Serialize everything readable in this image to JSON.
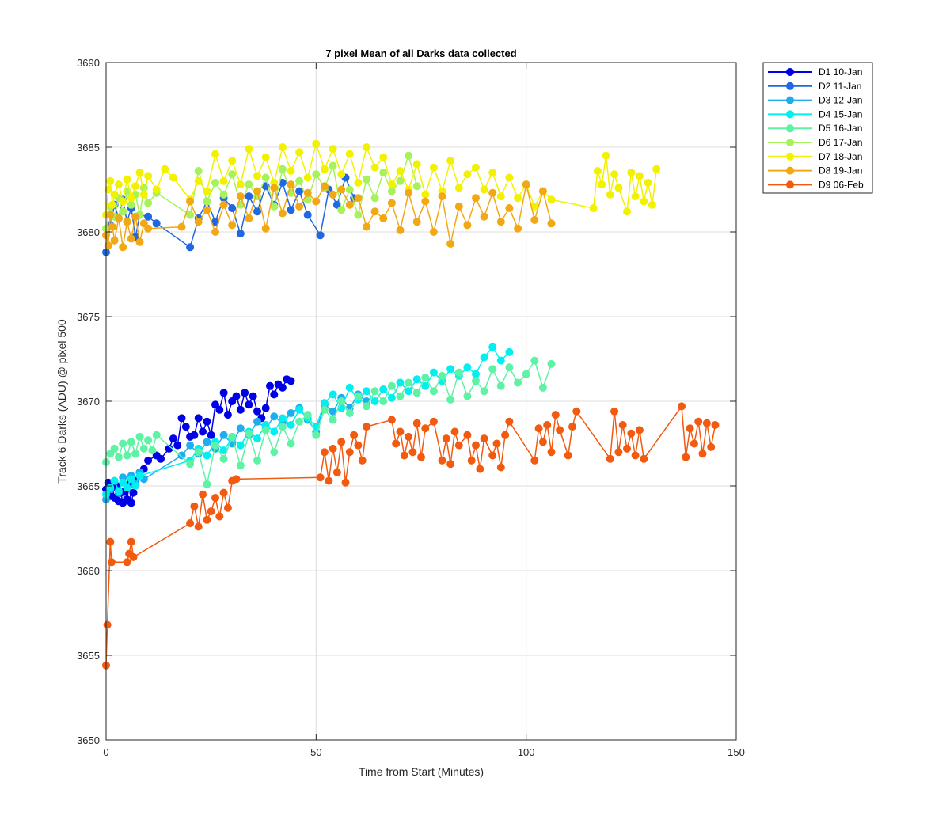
{
  "chart_data": {
    "type": "line",
    "title": "7 pixel Mean of all Darks data collected",
    "xlabel": "Time from Start (Minutes)",
    "ylabel": "Track 6 Darks (ADU) @ pixel 500",
    "xlim": [
      0,
      150
    ],
    "ylim": [
      3650,
      3690
    ],
    "xticks": [
      0,
      50,
      100,
      150
    ],
    "yticks": [
      3650,
      3655,
      3660,
      3665,
      3670,
      3675,
      3680,
      3685,
      3690
    ],
    "grid": true,
    "legend_position": "outside-top-right",
    "marker": "circle",
    "series": [
      {
        "name": "D1 10-Jan",
        "color": "#0000e6",
        "x": [
          0,
          0.5,
          1,
          1.5,
          2,
          2.5,
          3,
          3.5,
          4,
          4.5,
          5,
          5.5,
          6,
          6.5,
          7,
          8,
          9,
          10,
          12,
          13,
          15,
          16,
          17,
          18,
          19,
          20,
          21,
          22,
          23,
          24,
          25,
          26,
          27,
          28,
          29,
          30,
          31,
          32,
          33,
          34,
          35,
          36,
          37,
          38,
          39,
          40,
          41,
          42,
          43,
          44
        ],
        "y": [
          3664.8,
          3665.2,
          3664.4,
          3664.9,
          3664.3,
          3665.0,
          3664.1,
          3664.6,
          3664.0,
          3664.7,
          3664.2,
          3665.1,
          3664.0,
          3664.6,
          3665.3,
          3665.8,
          3666.0,
          3666.5,
          3666.8,
          3666.6,
          3667.2,
          3667.8,
          3667.4,
          3669.0,
          3668.5,
          3667.9,
          3668.0,
          3669.0,
          3668.2,
          3668.8,
          3668.0,
          3669.8,
          3669.5,
          3670.5,
          3669.2,
          3670.0,
          3670.3,
          3669.5,
          3670.5,
          3669.8,
          3670.3,
          3669.4,
          3669.0,
          3669.6,
          3670.9,
          3670.4,
          3671.0,
          3670.8,
          3671.3,
          3671.2
        ]
      },
      {
        "name": "D2 11-Jan",
        "color": "#1f67e3",
        "x": [
          0,
          1,
          2,
          3,
          4,
          5,
          6,
          7,
          8,
          10,
          12,
          20,
          22,
          24,
          26,
          28,
          30,
          32,
          34,
          36,
          38,
          40,
          42,
          44,
          46,
          48,
          51,
          53,
          55,
          57,
          59
        ],
        "y": [
          3678.8,
          3680.4,
          3681.6,
          3680.8,
          3681.9,
          3680.6,
          3681.4,
          3679.7,
          3681.0,
          3680.9,
          3680.5,
          3679.1,
          3680.8,
          3681.8,
          3680.6,
          3682.0,
          3681.4,
          3679.9,
          3682.1,
          3681.2,
          3682.7,
          3681.6,
          3682.9,
          3681.3,
          3682.4,
          3681.0,
          3679.8,
          3682.5,
          3681.6,
          3683.2,
          3682.0
        ]
      },
      {
        "name": "D3 12-Jan",
        "color": "#1eaef0",
        "x": [
          0,
          1,
          2,
          3,
          4,
          5,
          6,
          7,
          8,
          9,
          18,
          20,
          22,
          24,
          26,
          28,
          30,
          32,
          34,
          36,
          38,
          40,
          42,
          44,
          46,
          48,
          50,
          52,
          54,
          56,
          58,
          60,
          62
        ],
        "y": [
          3664.2,
          3664.8,
          3665.3,
          3664.6,
          3665.5,
          3664.9,
          3665.6,
          3665.1,
          3665.8,
          3665.4,
          3666.8,
          3667.4,
          3666.9,
          3667.6,
          3667.2,
          3668.0,
          3667.5,
          3668.4,
          3668.0,
          3668.8,
          3668.4,
          3669.1,
          3668.7,
          3669.3,
          3669.6,
          3668.9,
          3668.2,
          3669.8,
          3669.4,
          3670.2,
          3669.6,
          3670.4,
          3670.0
        ]
      },
      {
        "name": "D4 15-Jan",
        "color": "#00f0f0",
        "x": [
          0,
          1,
          2,
          3,
          4,
          5,
          6,
          7,
          8,
          20,
          22,
          24,
          26,
          28,
          30,
          32,
          34,
          36,
          38,
          40,
          42,
          44,
          46,
          48,
          50,
          52,
          54,
          56,
          58,
          60,
          62,
          64,
          66,
          68,
          70,
          72,
          74,
          76,
          78,
          80,
          82,
          84,
          86,
          88,
          90,
          92,
          94,
          96
        ],
        "y": [
          3664.5,
          3664.9,
          3665.3,
          3664.7,
          3665.2,
          3664.9,
          3665.4,
          3665.0,
          3665.6,
          3666.5,
          3667.2,
          3666.8,
          3667.6,
          3667.1,
          3667.8,
          3667.4,
          3668.2,
          3667.8,
          3668.6,
          3668.2,
          3669.0,
          3668.6,
          3669.5,
          3669.0,
          3668.5,
          3669.9,
          3670.4,
          3669.6,
          3670.8,
          3670.1,
          3670.6,
          3670.0,
          3670.7,
          3670.2,
          3671.1,
          3670.6,
          3671.3,
          3670.9,
          3671.7,
          3671.2,
          3671.9,
          3671.5,
          3672.0,
          3671.6,
          3672.6,
          3673.2,
          3672.4,
          3672.9
        ]
      },
      {
        "name": "D5 16-Jan",
        "color": "#5ef2a5",
        "x": [
          0,
          1,
          2,
          3,
          4,
          5,
          6,
          7,
          8,
          9,
          10,
          11,
          12,
          20,
          22,
          24,
          26,
          28,
          30,
          32,
          34,
          36,
          38,
          40,
          42,
          44,
          46,
          48,
          50,
          52,
          54,
          56,
          58,
          60,
          62,
          64,
          66,
          68,
          70,
          72,
          74,
          76,
          78,
          80,
          82,
          84,
          86,
          88,
          90,
          92,
          94,
          96,
          98,
          100,
          102,
          104,
          106
        ],
        "y": [
          3666.4,
          3666.9,
          3667.2,
          3666.7,
          3667.5,
          3666.8,
          3667.6,
          3666.9,
          3667.9,
          3667.2,
          3667.7,
          3667.1,
          3668.0,
          3666.3,
          3667.0,
          3665.1,
          3667.4,
          3666.6,
          3667.9,
          3666.2,
          3668.1,
          3666.5,
          3668.3,
          3667.0,
          3668.5,
          3667.5,
          3668.8,
          3669.2,
          3668.0,
          3669.5,
          3668.9,
          3670.0,
          3669.3,
          3670.3,
          3669.7,
          3670.6,
          3670.0,
          3670.9,
          3670.3,
          3671.1,
          3670.5,
          3671.4,
          3670.6,
          3671.5,
          3670.1,
          3671.7,
          3670.3,
          3671.2,
          3670.6,
          3671.9,
          3670.9,
          3672.0,
          3671.1,
          3671.6,
          3672.4,
          3670.8,
          3672.2
        ]
      },
      {
        "name": "D6 17-Jan",
        "color": "#a6f25a",
        "x": [
          0,
          1,
          2,
          3,
          4,
          5,
          6,
          7,
          8,
          9,
          10,
          12,
          20,
          22,
          24,
          26,
          28,
          30,
          32,
          34,
          36,
          38,
          40,
          42,
          44,
          46,
          48,
          50,
          52,
          54,
          56,
          58,
          60,
          62,
          64,
          66,
          68,
          70,
          72,
          74
        ],
        "y": [
          3680.2,
          3681.5,
          3680.9,
          3682.0,
          3681.2,
          3682.4,
          3681.6,
          3682.2,
          3681.0,
          3682.6,
          3681.7,
          3682.3,
          3681.0,
          3683.6,
          3681.8,
          3682.9,
          3682.2,
          3683.4,
          3681.6,
          3682.8,
          3682.1,
          3683.2,
          3681.5,
          3683.7,
          3682.3,
          3683.0,
          3681.9,
          3683.4,
          3682.6,
          3683.9,
          3681.3,
          3682.5,
          3681.0,
          3683.1,
          3682.0,
          3683.5,
          3682.4,
          3683.0,
          3684.5,
          3682.7
        ]
      },
      {
        "name": "D7 18-Jan",
        "color": "#f2f200",
        "x": [
          0,
          0.5,
          1,
          1.5,
          2,
          3,
          4,
          5,
          6,
          7,
          8,
          9,
          10,
          12,
          14,
          16,
          20,
          22,
          24,
          26,
          28,
          30,
          32,
          34,
          36,
          38,
          40,
          42,
          44,
          46,
          48,
          50,
          52,
          54,
          56,
          58,
          60,
          62,
          64,
          66,
          68,
          70,
          72,
          74,
          76,
          78,
          80,
          82,
          84,
          86,
          88,
          90,
          92,
          94,
          96,
          98,
          100,
          102,
          104,
          106,
          116,
          117,
          118,
          119,
          120,
          121,
          122,
          124,
          125,
          126,
          127,
          128,
          129,
          130,
          131
        ],
        "y": [
          3681.0,
          3682.5,
          3683.0,
          3681.6,
          3682.2,
          3682.8,
          3681.8,
          3683.1,
          3682.0,
          3682.7,
          3683.5,
          3682.2,
          3683.3,
          3682.5,
          3683.7,
          3683.2,
          3681.9,
          3683.0,
          3682.4,
          3684.6,
          3683.0,
          3684.2,
          3682.8,
          3684.9,
          3683.3,
          3684.4,
          3682.9,
          3685.0,
          3683.6,
          3684.7,
          3683.2,
          3685.2,
          3683.7,
          3684.9,
          3683.4,
          3684.6,
          3682.9,
          3685.0,
          3683.8,
          3684.4,
          3682.8,
          3683.6,
          3682.5,
          3684.0,
          3682.2,
          3683.8,
          3682.4,
          3684.2,
          3682.6,
          3683.4,
          3683.8,
          3682.5,
          3683.5,
          3682.1,
          3683.2,
          3682.0,
          3682.8,
          3681.5,
          3682.4,
          3681.9,
          3681.4,
          3683.6,
          3682.8,
          3684.5,
          3682.2,
          3683.4,
          3682.6,
          3681.2,
          3683.5,
          3682.1,
          3683.3,
          3681.8,
          3682.9,
          3681.6,
          3683.7
        ]
      },
      {
        "name": "D8 19-Jan",
        "color": "#f2a814",
        "x": [
          0,
          0.5,
          1,
          1.5,
          2,
          3,
          4,
          5,
          6,
          7,
          8,
          9,
          10,
          18,
          20,
          22,
          24,
          26,
          28,
          30,
          32,
          34,
          36,
          38,
          40,
          42,
          44,
          46,
          48,
          50,
          52,
          54,
          56,
          58,
          60,
          62,
          64,
          66,
          68,
          70,
          72,
          74,
          76,
          78,
          80,
          82,
          84,
          86,
          88,
          90,
          92,
          94,
          96,
          98,
          100,
          102,
          104,
          106
        ],
        "y": [
          3679.8,
          3679.2,
          3681.0,
          3680.3,
          3679.5,
          3680.8,
          3679.1,
          3680.6,
          3679.6,
          3680.9,
          3679.4,
          3680.5,
          3680.2,
          3680.3,
          3681.8,
          3680.6,
          3681.3,
          3680.0,
          3681.6,
          3680.4,
          3682.1,
          3680.8,
          3682.4,
          3680.2,
          3682.6,
          3681.1,
          3682.8,
          3681.5,
          3682.3,
          3681.8,
          3682.7,
          3682.2,
          3682.5,
          3681.6,
          3682.0,
          3680.3,
          3681.2,
          3680.8,
          3681.7,
          3680.1,
          3682.3,
          3680.6,
          3681.8,
          3680.0,
          3682.1,
          3679.3,
          3681.5,
          3680.4,
          3682.0,
          3680.9,
          3682.3,
          3680.6,
          3681.4,
          3680.2,
          3682.8,
          3680.7,
          3682.4,
          3680.5
        ]
      },
      {
        "name": "D9 06-Feb",
        "color": "#f25a0f",
        "x": [
          0,
          0.3,
          1,
          1.3,
          5,
          5.5,
          6,
          6.5,
          20,
          21,
          22,
          23,
          24,
          25,
          26,
          27,
          28,
          29,
          30,
          31,
          51,
          52,
          53,
          54,
          55,
          56,
          57,
          58,
          59,
          60,
          61,
          62,
          68,
          69,
          70,
          71,
          72,
          73,
          74,
          75,
          76,
          78,
          80,
          81,
          82,
          83,
          84,
          86,
          87,
          88,
          89,
          90,
          92,
          93,
          94,
          95,
          96,
          102,
          103,
          104,
          105,
          106,
          107,
          108,
          110,
          111,
          112,
          120,
          121,
          122,
          123,
          124,
          125,
          126,
          127,
          128,
          137,
          138,
          139,
          140,
          141,
          142,
          143,
          144,
          145
        ],
        "y": [
          3654.4,
          3656.8,
          3661.7,
          3660.5,
          3660.5,
          3661.0,
          3661.7,
          3660.8,
          3662.8,
          3663.8,
          3662.6,
          3664.5,
          3663.0,
          3663.5,
          3664.3,
          3663.2,
          3664.6,
          3663.7,
          3665.3,
          3665.4,
          3665.5,
          3667.0,
          3665.3,
          3667.2,
          3665.8,
          3667.6,
          3665.2,
          3667.0,
          3668.0,
          3667.4,
          3666.5,
          3668.5,
          3668.9,
          3667.5,
          3668.2,
          3666.8,
          3667.9,
          3667.0,
          3668.7,
          3666.7,
          3668.4,
          3668.8,
          3666.5,
          3667.8,
          3666.3,
          3668.2,
          3667.4,
          3668.0,
          3666.5,
          3667.4,
          3666.0,
          3667.8,
          3666.8,
          3667.5,
          3666.1,
          3668.0,
          3668.8,
          3666.5,
          3668.4,
          3667.6,
          3668.6,
          3667.0,
          3669.2,
          3668.3,
          3666.8,
          3668.5,
          3669.4,
          3666.6,
          3669.4,
          3667.0,
          3668.6,
          3667.2,
          3668.1,
          3666.8,
          3668.3,
          3666.6,
          3669.7,
          3666.7,
          3668.4,
          3667.5,
          3668.8,
          3666.9,
          3668.7,
          3667.3,
          3668.6
        ]
      }
    ]
  }
}
